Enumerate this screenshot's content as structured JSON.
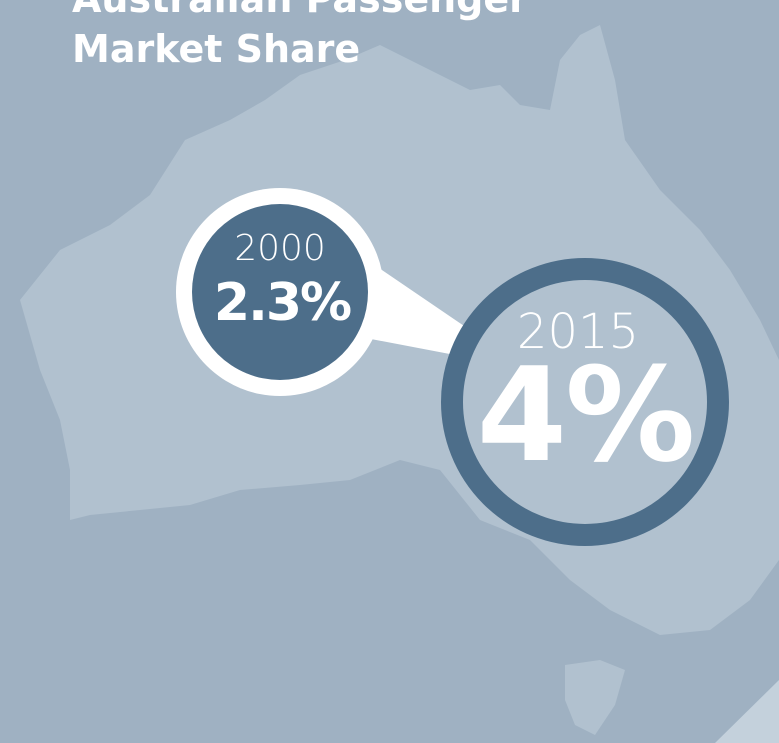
{
  "header": {
    "title_lines": [
      "Australian Passenger",
      "Market Share"
    ]
  },
  "callouts": [
    {
      "year": "2000",
      "value": "2.3%"
    },
    {
      "year": "2015",
      "value": "4%"
    }
  ]
}
